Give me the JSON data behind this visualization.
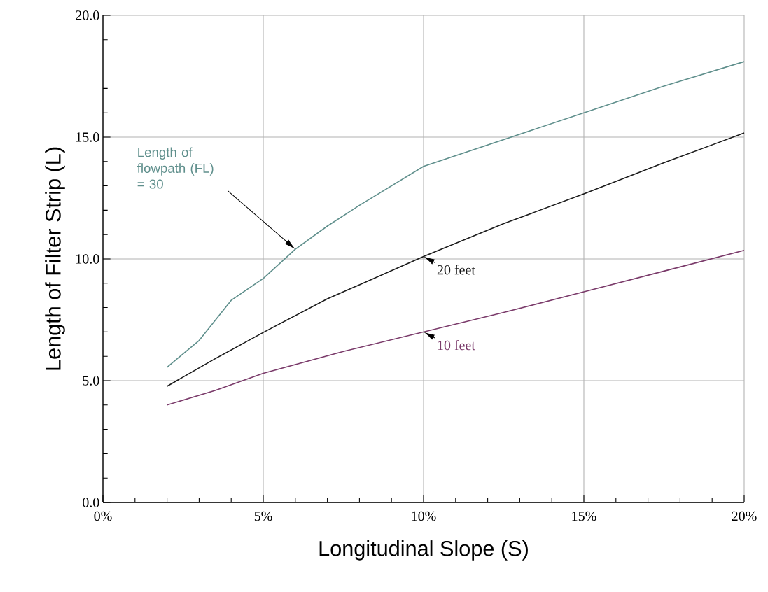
{
  "chart_data": {
    "type": "line",
    "xlabel": "Longitudinal Slope (S)",
    "ylabel": "Length of Filter Strip (L)",
    "xlim": [
      0,
      20
    ],
    "ylim": [
      0,
      20
    ],
    "xticks": [
      {
        "value": 0,
        "label": "0%"
      },
      {
        "value": 5,
        "label": "5%"
      },
      {
        "value": 10,
        "label": "10%"
      },
      {
        "value": 15,
        "label": "15%"
      },
      {
        "value": 20,
        "label": "20%"
      }
    ],
    "yticks": [
      {
        "value": 0,
        "label": "0.0"
      },
      {
        "value": 5,
        "label": "5.0"
      },
      {
        "value": 10,
        "label": "10.0"
      },
      {
        "value": 15,
        "label": "15.0"
      },
      {
        "value": 20,
        "label": "20.0"
      }
    ],
    "grid": true,
    "series": [
      {
        "name": "Length of flowpath (FL) = 30",
        "color": "#5f8f8c",
        "x": [
          2,
          3,
          4,
          5,
          6,
          7,
          8,
          10,
          12.5,
          15,
          17.5,
          20
        ],
        "values": [
          5.55,
          6.65,
          8.3,
          9.2,
          10.4,
          11.35,
          12.2,
          13.8,
          14.9,
          16.0,
          17.1,
          18.1
        ]
      },
      {
        "name": "20 feet",
        "color": "#1a1a1a",
        "x": [
          2,
          3.5,
          5,
          7,
          10,
          12.5,
          15,
          17.5,
          20
        ],
        "values": [
          4.77,
          5.9,
          6.98,
          8.36,
          10.1,
          11.45,
          12.67,
          13.95,
          15.17
        ]
      },
      {
        "name": "10 feet",
        "color": "#7a3a6a",
        "x": [
          2,
          3.5,
          5,
          7.5,
          10,
          12.5,
          15,
          17.5,
          20
        ],
        "values": [
          4.0,
          4.6,
          5.3,
          6.2,
          7.0,
          7.8,
          8.65,
          9.5,
          10.35
        ]
      }
    ]
  }
}
